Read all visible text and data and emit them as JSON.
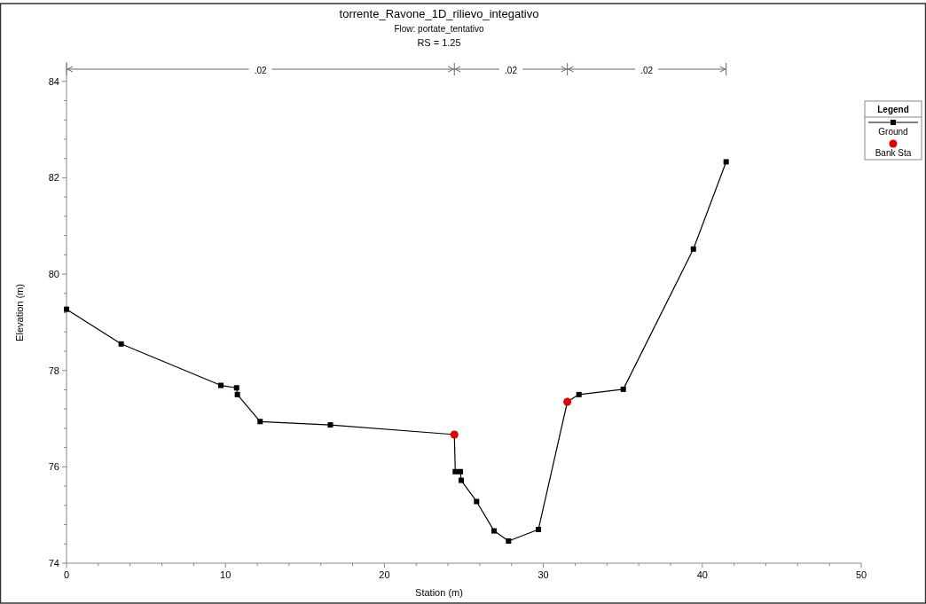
{
  "chart_data": {
    "type": "line",
    "title": "torrente_Ravone_1D_rilievo_integativo",
    "subtitle": "Flow: portate_tentativo",
    "annotations": [
      "RS = 1.25",
      {
        "text": ".02",
        "x": 12.2,
        "y": 84.23
      },
      {
        "text": ".02",
        "x": 27.96,
        "y": 84.23
      },
      {
        "text": ".02",
        "x": 36.5,
        "y": 84.23
      }
    ],
    "xlabel": "Station (m)",
    "ylabel": "Elevation (m)",
    "legend_title": "Legend",
    "legend": "top right",
    "xlim": [
      0,
      50
    ],
    "ylim": [
      74,
      84.4
    ],
    "xticks": [
      0,
      {
        "value": 2,
        "label": null
      },
      {
        "value": 4,
        "label": null
      },
      {
        "value": 6,
        "label": null
      },
      {
        "value": 8,
        "label": null
      },
      10,
      {
        "value": 12,
        "label": null
      },
      {
        "value": 14,
        "label": null
      },
      {
        "value": 16,
        "label": null
      },
      {
        "value": 18,
        "label": null
      },
      20,
      {
        "value": 22,
        "label": null
      },
      {
        "value": 24,
        "label": null
      },
      {
        "value": 26,
        "label": null
      },
      {
        "value": 28,
        "label": null
      },
      30,
      {
        "value": 32,
        "label": null
      },
      {
        "value": 34,
        "label": null
      },
      {
        "value": 36,
        "label": null
      },
      {
        "value": 38,
        "label": null
      },
      40,
      {
        "value": 42,
        "label": null
      },
      {
        "value": 44,
        "label": null
      },
      {
        "value": 46,
        "label": null
      },
      {
        "value": 48,
        "label": null
      },
      50
    ],
    "yticks": [
      74,
      {
        "value": 74.4,
        "label": null
      },
      {
        "value": 74.8,
        "label": null
      },
      {
        "value": 75.2,
        "label": null
      },
      {
        "value": 75.6,
        "label": null
      },
      76,
      {
        "value": 76.4,
        "label": null
      },
      {
        "value": 76.8,
        "label": null
      },
      {
        "value": 77.2,
        "label": null
      },
      {
        "value": 77.6,
        "label": null
      },
      78,
      {
        "value": 78.4,
        "label": null
      },
      {
        "value": 78.8,
        "label": null
      },
      {
        "value": 79.2,
        "label": null
      },
      {
        "value": 79.6,
        "label": null
      },
      80,
      {
        "value": 80.4,
        "label": null
      },
      {
        "value": 80.8,
        "label": null
      },
      {
        "value": 81.2,
        "label": null
      },
      {
        "value": 81.6,
        "label": null
      },
      82,
      {
        "value": 82.4,
        "label": null
      },
      {
        "value": 82.8,
        "label": null
      },
      {
        "value": 83.2,
        "label": null
      },
      {
        "value": 83.6,
        "label": null
      },
      84
    ],
    "series": [
      {
        "name": "Ground",
        "type": "line",
        "color": "#000000",
        "marker": "square",
        "x": [
          0,
          3.44,
          9.71,
          10.7,
          10.75,
          12.18,
          16.6,
          24.4,
          24.46,
          24.78,
          24.83,
          25.8,
          26.9,
          27.81,
          29.69,
          31.51,
          32.24,
          35.03,
          39.44,
          41.5
        ],
        "values": [
          79.27,
          78.55,
          77.69,
          77.64,
          77.5,
          76.94,
          76.87,
          76.67,
          75.9,
          75.9,
          75.72,
          75.28,
          74.67,
          74.46,
          74.7,
          77.35,
          77.5,
          77.61,
          80.52,
          82.33
        ]
      },
      {
        "name": "Bank Sta",
        "type": "scatter",
        "color": "#e00000",
        "marker": "circle",
        "x": [
          24.4,
          31.51
        ],
        "values": [
          76.67,
          77.35
        ]
      }
    ]
  }
}
